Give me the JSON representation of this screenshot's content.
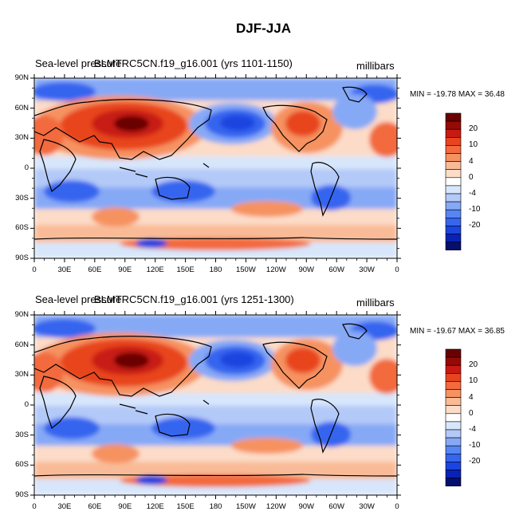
{
  "figure": {
    "title": "DJF-JJA",
    "units": "millibars",
    "colors": {
      "levels": [
        "#050f6e",
        "#0a21b8",
        "#1b45e0",
        "#3665ef",
        "#5686f4",
        "#86a9f6",
        "#b3c9f8",
        "#d8e6fb",
        "#ffffff",
        "#fcdcc8",
        "#f9bb97",
        "#f69261",
        "#f26a3e",
        "#e8441f",
        "#c81a12",
        "#960a06",
        "#6a0000"
      ],
      "land_outline": "#000000"
    },
    "colorbar_labels": [
      "20",
      "10",
      "4",
      "0",
      "-4",
      "-10",
      "-20"
    ],
    "x_ticks": [
      "0",
      "30E",
      "60E",
      "90E",
      "120E",
      "150E",
      "180",
      "150W",
      "120W",
      "90W",
      "60W",
      "30W",
      "0"
    ],
    "y_ticks": [
      "90N",
      "60N",
      "30N",
      "0",
      "30S",
      "60S",
      "90S"
    ]
  },
  "panels": [
    {
      "title_left": "Sea-level pressure",
      "title_center": "BLMTRC5CN.f19_g16.001 (yrs 1101-1150)",
      "min_max": "MIN = -19.78 MAX =  36.48",
      "min": -19.78,
      "max": 36.48
    },
    {
      "title_left": "Sea-level pressure",
      "title_center": "BLMTRC5CN.f19_g16.001 (yrs 1251-1300)",
      "min_max": "MIN = -19.67 MAX =  36.85",
      "min": -19.67,
      "max": 36.85
    }
  ]
}
